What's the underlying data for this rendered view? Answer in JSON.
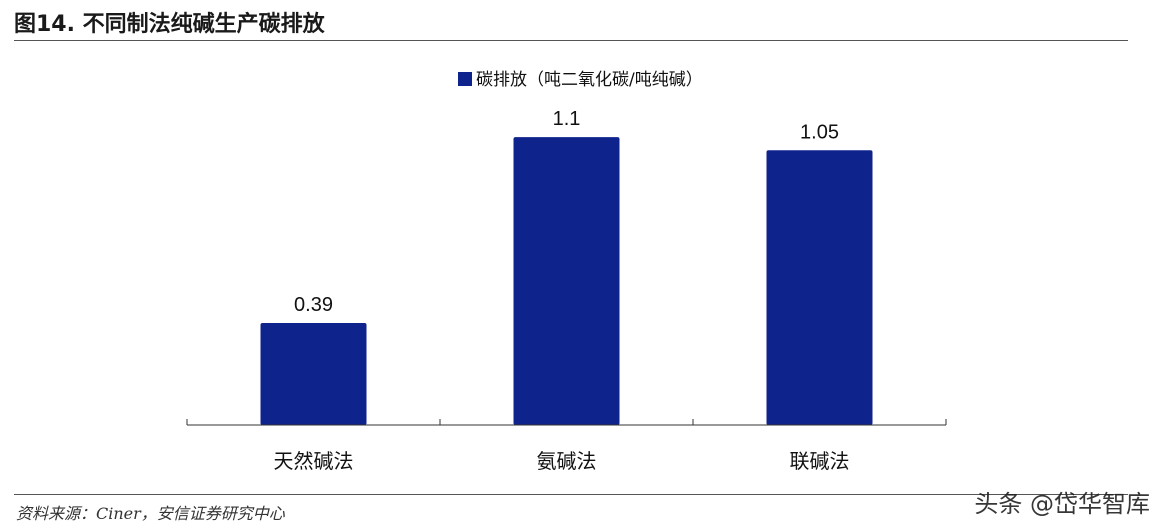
{
  "header": {
    "title": "图14. 不同制法纯碱生产碳排放"
  },
  "footer": {
    "source": "资料来源：Ciner，安信证券研究中心",
    "watermark": "头条 @岱华智库"
  },
  "chart_data": {
    "type": "bar",
    "title": "",
    "categories": [
      "天然碱法",
      "氨碱法",
      "联碱法"
    ],
    "series": [
      {
        "name": "碳排放（吨二氧化碳/吨纯碱）",
        "values": [
          0.39,
          1.1,
          1.05
        ],
        "labels": [
          "0.39",
          "1.1",
          "1.05"
        ]
      }
    ],
    "xlabel": "",
    "ylabel": "",
    "ylim": [
      0,
      1.2
    ],
    "legend_position": "top-center",
    "grid": false,
    "bar_color": "#0f238c"
  }
}
